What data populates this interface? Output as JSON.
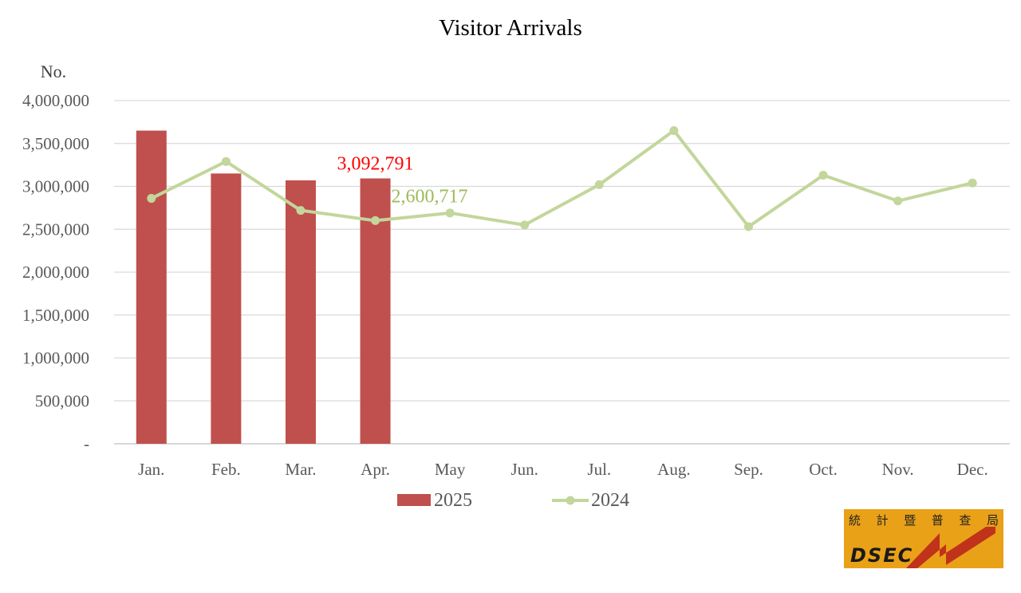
{
  "chart_data": {
    "type": "bar",
    "title": "Visitor Arrivals",
    "ylabel": "No.",
    "xlabel": "",
    "categories": [
      "Jan.",
      "Feb.",
      "Mar.",
      "Apr.",
      "May",
      "Jun.",
      "Jul.",
      "Aug.",
      "Sep.",
      "Oct.",
      "Nov.",
      "Dec."
    ],
    "ylim": [
      0,
      4000000
    ],
    "yticks": [
      0,
      500000,
      1000000,
      1500000,
      2000000,
      2500000,
      3000000,
      3500000,
      4000000
    ],
    "ytick_labels": [
      "-",
      "500,000",
      "1,000,000",
      "1,500,000",
      "2,000,000",
      "2,500,000",
      "3,000,000",
      "3,500,000",
      "4,000,000"
    ],
    "grid": true,
    "legend_position": "bottom",
    "series": [
      {
        "name": "2025",
        "kind": "bar",
        "color": "#c0504d",
        "values": [
          3650000,
          3150000,
          3070000,
          3092791,
          null,
          null,
          null,
          null,
          null,
          null,
          null,
          null
        ]
      },
      {
        "name": "2024",
        "kind": "line",
        "color": "#c3d69b",
        "values": [
          2860000,
          3290000,
          2720000,
          2600717,
          2690000,
          2550000,
          3020000,
          3650000,
          2530000,
          3130000,
          2830000,
          3040000
        ]
      }
    ],
    "annotations": [
      {
        "series": "2025",
        "category": "Apr.",
        "text": "3,092,791",
        "color": "#ff0000"
      },
      {
        "series": "2024",
        "category": "Apr.",
        "text": "2,600,717",
        "color": "#9bbb59"
      }
    ]
  },
  "logo": {
    "chinese_text": "統計暨普查局",
    "english_text": "DSEC",
    "color": "#e9a118"
  }
}
